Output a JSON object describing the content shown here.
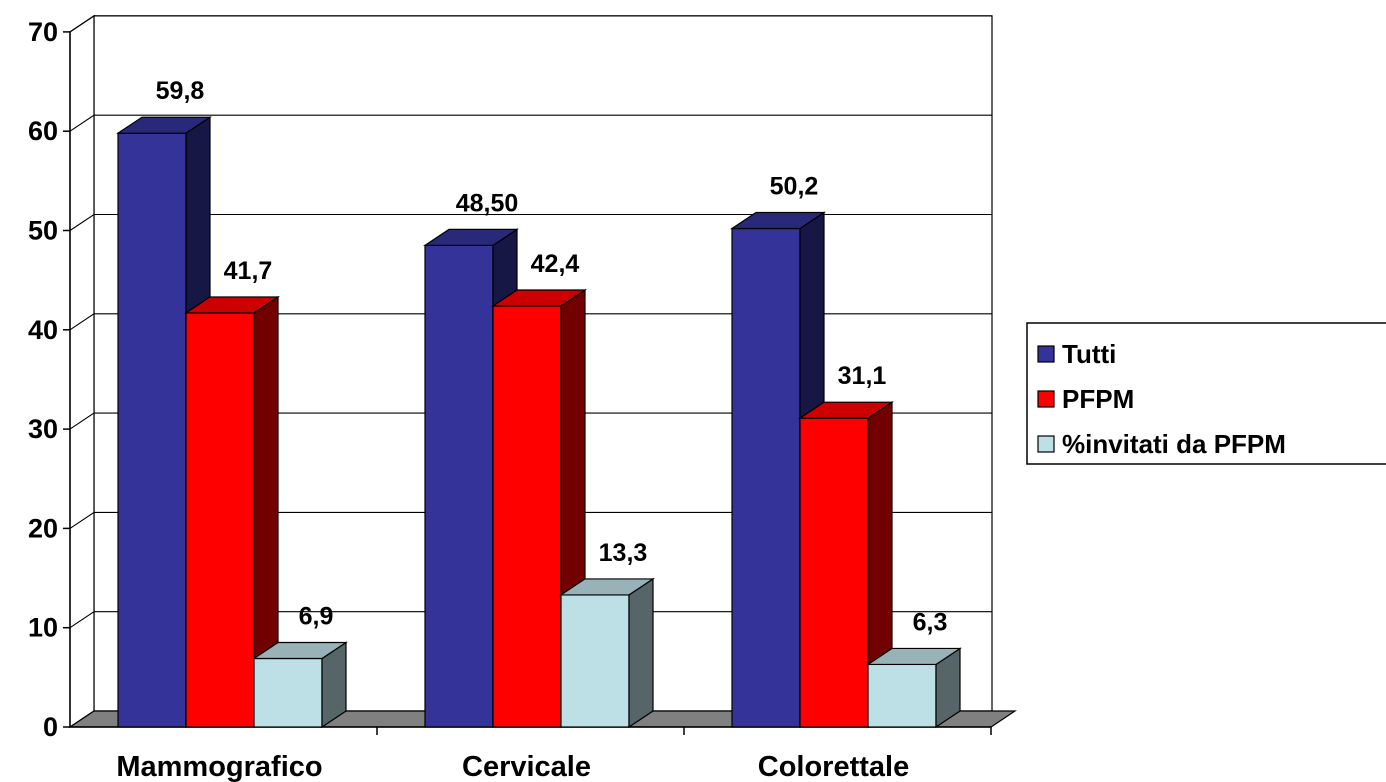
{
  "chart_data": {
    "type": "bar",
    "categories": [
      "Mammografico",
      "Cervicale",
      "Colorettale"
    ],
    "series": [
      {
        "name": "Tutti",
        "values": [
          59.8,
          48.5,
          50.2
        ],
        "labels": [
          "59,8",
          "48,50",
          "50,2"
        ],
        "color": "#333399"
      },
      {
        "name": "PFPM",
        "values": [
          41.7,
          42.4,
          31.1
        ],
        "labels": [
          "41,7",
          "42,4",
          "31,1"
        ],
        "color": "#ff0000"
      },
      {
        "name": "%invitati da PFPM",
        "values": [
          6.9,
          13.3,
          6.3
        ],
        "labels": [
          "6,9",
          "13,3",
          "6,3"
        ],
        "color": "#bde0e6"
      }
    ],
    "yticks": [
      "0",
      "10",
      "20",
      "30",
      "40",
      "50",
      "60",
      "70"
    ],
    "ylim": [
      0,
      70
    ],
    "grid": true,
    "three_d": true,
    "legend": "right",
    "title": "",
    "xlabel": "",
    "ylabel": ""
  }
}
